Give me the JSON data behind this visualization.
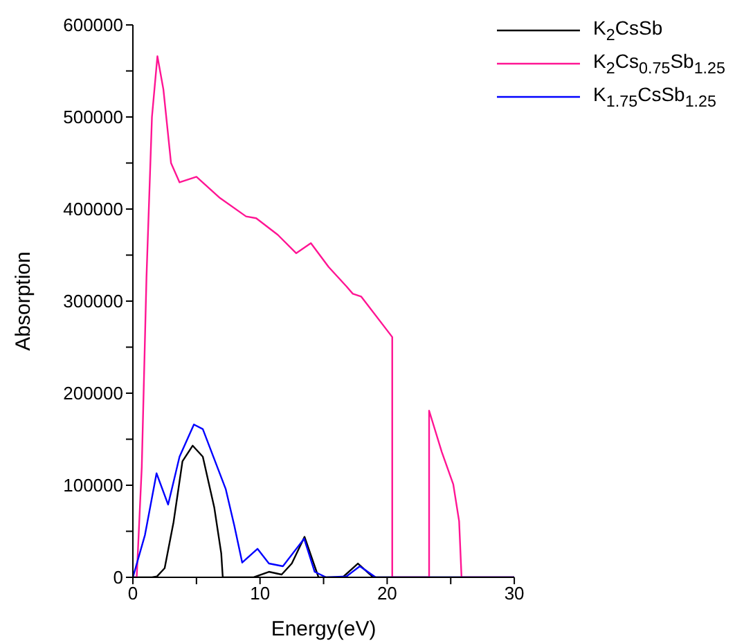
{
  "chart_data": {
    "type": "line",
    "xlabel": "Energy(eV)",
    "ylabel": "Absorption",
    "xlim": [
      0,
      30
    ],
    "ylim": [
      0,
      600000
    ],
    "xticks": [
      0,
      {
        "value": 5,
        "label": null
      },
      10,
      {
        "value": 15,
        "label": null
      },
      20,
      {
        "value": 25,
        "label": null
      },
      30
    ],
    "yticks": [
      0,
      {
        "value": 50000,
        "label": null
      },
      100000,
      {
        "value": 150000,
        "label": null
      },
      200000,
      {
        "value": 250000,
        "label": null
      },
      300000,
      {
        "value": 350000,
        "label": null
      },
      400000,
      {
        "value": 450000,
        "label": null
      },
      500000,
      {
        "value": 550000,
        "label": null
      },
      600000
    ],
    "grid": false,
    "legend": "top right",
    "marker": "none",
    "line_style": "solid",
    "series": [
      {
        "name": "K$_{2}$CsSb",
        "color": "#000000",
        "x": [
          0,
          1.5,
          1.9,
          2.5,
          3.2,
          3.9,
          4.7,
          5.5,
          6.4,
          6.95,
          7.07,
          9.5,
          10.7,
          11.7,
          12.5,
          13.5,
          14.6,
          16.5,
          17.7,
          18.9,
          30
        ],
        "values": [
          0,
          0,
          1000,
          10000,
          60000,
          126000,
          143000,
          131000,
          76000,
          26000,
          0,
          0,
          6000,
          3000,
          15000,
          44000,
          0,
          0,
          15000,
          0,
          0
        ]
      },
      {
        "name": "K$_{2}$Cs$_{0.75}$Sb$_{1.25}$",
        "color": "#ff1493",
        "x": [
          0,
          0.3,
          0.7,
          1.07,
          1.5,
          1.93,
          2.4,
          3.0,
          3.67,
          5.0,
          6.85,
          8.9,
          9.7,
          11.4,
          12.85,
          14.0,
          15.4,
          16.8,
          17.3,
          17.95,
          20.4,
          20.4,
          23.3,
          23.3,
          24.3,
          25.2,
          25.66,
          25.85,
          30
        ],
        "values": [
          0,
          0,
          120000,
          326000,
          500000,
          566000,
          530000,
          450000,
          429000,
          435000,
          412000,
          392000,
          390000,
          372000,
          352000,
          363000,
          337000,
          316000,
          308000,
          305000,
          261000,
          0,
          0,
          181000,
          136000,
          101000,
          61000,
          0,
          0
        ]
      },
      {
        "name": "K$_{1.75}$CsSb$_{1.25}$",
        "color": "#0000ff",
        "x": [
          0,
          0.95,
          1.86,
          2.77,
          3.67,
          4.8,
          5.5,
          7.3,
          7.98,
          8.6,
          9.8,
          10.7,
          11.8,
          13.47,
          14.3,
          15.2,
          16.8,
          17.85,
          19.1,
          30
        ],
        "values": [
          0,
          46000,
          113000,
          79000,
          131000,
          166000,
          161000,
          96000,
          56000,
          16000,
          31000,
          15000,
          12000,
          42000,
          6000,
          0,
          1000,
          12000,
          0,
          0
        ]
      }
    ]
  }
}
